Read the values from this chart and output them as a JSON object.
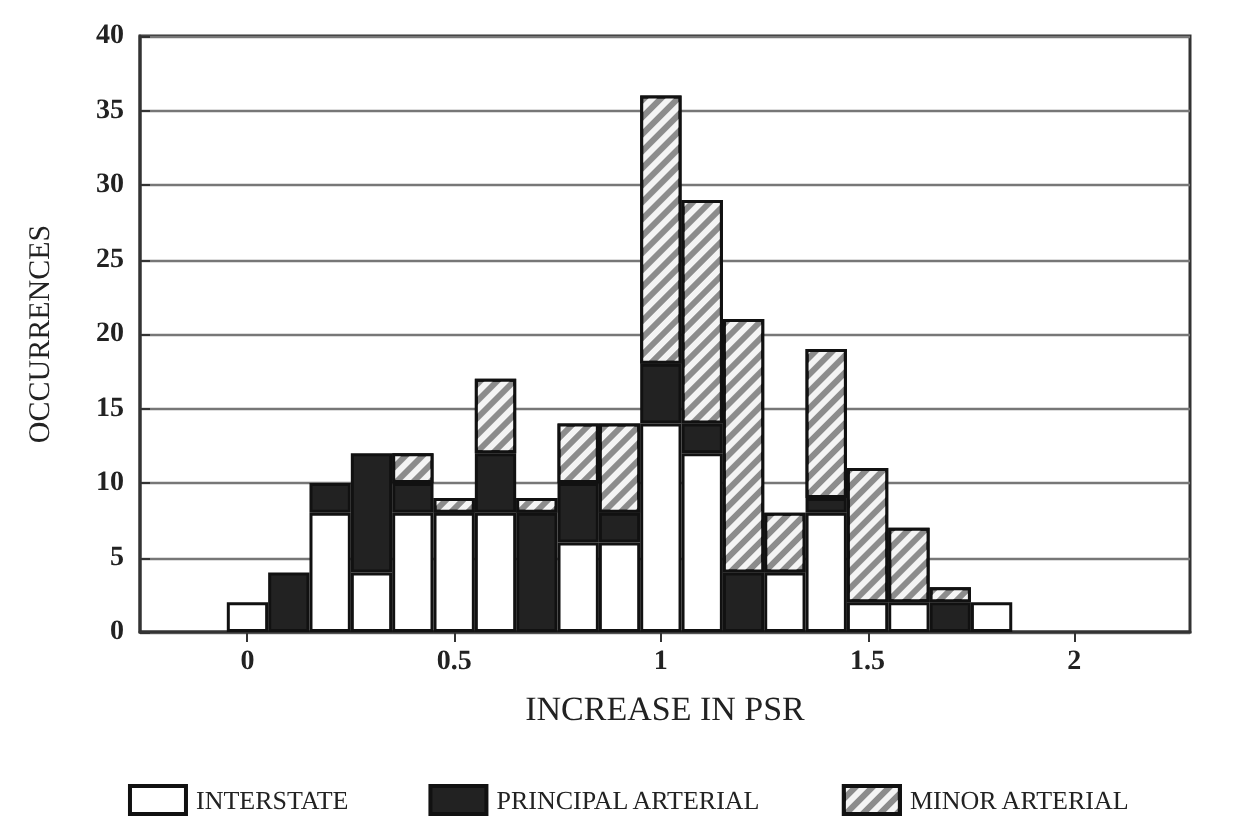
{
  "chart_data": {
    "type": "bar",
    "stacked": true,
    "xlabel": "INCREASE IN PSR",
    "ylabel": "OCCURRENCES",
    "x": [
      0,
      0.1,
      0.2,
      0.3,
      0.4,
      0.5,
      0.6,
      0.7,
      0.8,
      0.9,
      1.0,
      1.1,
      1.2,
      1.3,
      1.4,
      1.5,
      1.6,
      1.7,
      1.8
    ],
    "series": [
      {
        "name": "INTERSTATE",
        "color": "#ffffff",
        "values": [
          2,
          0,
          8,
          4,
          8,
          8,
          8,
          0,
          6,
          6,
          14,
          12,
          0,
          4,
          8,
          2,
          2,
          0,
          2
        ]
      },
      {
        "name": "PRINCIPAL ARTERIAL",
        "color": "#222222",
        "values": [
          0,
          4,
          2,
          8,
          2,
          0,
          4,
          8,
          4,
          2,
          4,
          2,
          4,
          0,
          1,
          0,
          0,
          2,
          0
        ]
      },
      {
        "name": "MINOR ARTERIAL",
        "color": "#8c8c8c",
        "values": [
          0,
          0,
          0,
          0,
          2,
          1,
          5,
          1,
          4,
          6,
          18,
          15,
          17,
          4,
          10,
          9,
          5,
          1,
          0
        ]
      }
    ],
    "xlim": [
      -0.26,
      2.28
    ],
    "xticks": [
      0,
      0.5,
      1,
      1.5,
      2
    ],
    "ylim": [
      0,
      40
    ],
    "yticks": [
      0,
      5,
      10,
      15,
      20,
      25,
      30,
      35,
      40
    ],
    "grid": "y",
    "legend": "bottom"
  }
}
